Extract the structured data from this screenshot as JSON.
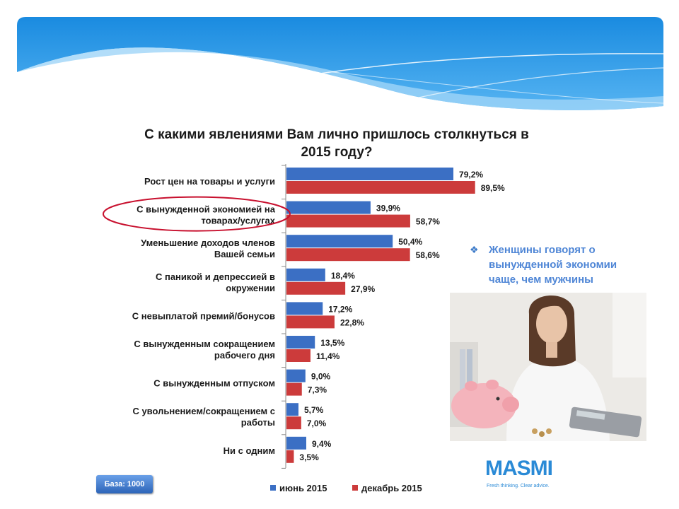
{
  "chart_data": {
    "type": "bar",
    "orientation": "horizontal",
    "title": "С какими явлениями Вам лично пришлось столкнуться в 2015 году?",
    "title_lines": [
      "С какими явлениями Вам лично пришлось столкнуться в",
      "2015 году?"
    ],
    "categories": [
      [
        "Рост цен на товары и услуги"
      ],
      [
        "С вынужденной экономией на",
        "товарах/услугах"
      ],
      [
        "Уменьшение доходов членов",
        "Вашей семьи"
      ],
      [
        "С паникой и депрессией в",
        "окружении"
      ],
      [
        "С невыплатой премий/бонусов"
      ],
      [
        "С вынужденным сокращением",
        "рабочего дня"
      ],
      [
        "С вынужденным отпуском"
      ],
      [
        "С увольнением/сокращением с",
        "работы"
      ],
      [
        "Ни с одним"
      ]
    ],
    "series": [
      {
        "name": "июнь 2015",
        "color": "#3b6fc4",
        "values": [
          79.2,
          39.9,
          50.4,
          18.4,
          17.2,
          13.5,
          9.0,
          5.7,
          9.4
        ],
        "labels": [
          "79,2%",
          "39,9%",
          "50,4%",
          "18,4%",
          "17,2%",
          "13,5%",
          "9,0%",
          "5,7%",
          "9,4%"
        ]
      },
      {
        "name": "декабрь 2015",
        "color": "#cc3b3b",
        "values": [
          89.5,
          58.7,
          58.6,
          27.9,
          22.8,
          11.4,
          7.3,
          7.0,
          3.5
        ],
        "labels": [
          "89,5%",
          "58,7%",
          "58,6%",
          "27,9%",
          "22,8%",
          "11,4%",
          "7,3%",
          "7,0%",
          "3,5%"
        ]
      }
    ],
    "xlim": [
      0,
      100
    ],
    "highlighted_category_index": 1,
    "legend": "bottom",
    "grid": false
  },
  "note": "Женщины говорят о вынужденной экономии чаще, чем мужчины",
  "base_label": "База: 1000",
  "logo": {
    "word": "MASMI",
    "tagline": "Fresh thinking. Clear advice."
  }
}
